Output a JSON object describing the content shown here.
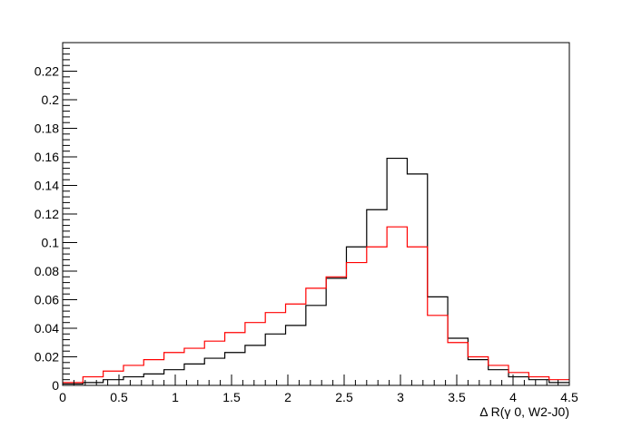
{
  "chart_data": {
    "type": "line",
    "style": "step-histogram",
    "xlabel": "Δ R(γ 0, W2-J0)",
    "ylabel": "",
    "title": "",
    "xlim": [
      0,
      4.5
    ],
    "ylim": [
      0,
      0.24
    ],
    "grid": false,
    "bin_edges": [
      0,
      0.18,
      0.36,
      0.54,
      0.72,
      0.9,
      1.08,
      1.26,
      1.44,
      1.62,
      1.8,
      1.98,
      2.16,
      2.34,
      2.52,
      2.7,
      2.88,
      3.06,
      3.24,
      3.42,
      3.6,
      3.78,
      3.96,
      4.14,
      4.32,
      4.5
    ],
    "x_ticks": [
      0,
      0.5,
      1,
      1.5,
      2,
      2.5,
      3,
      3.5,
      4,
      4.5
    ],
    "x_tick_labels": [
      "0",
      "0.5",
      "1",
      "1.5",
      "2",
      "2.5",
      "3",
      "3.5",
      "4",
      "4.5"
    ],
    "y_ticks": [
      0,
      0.02,
      0.04,
      0.06,
      0.08,
      0.1,
      0.12,
      0.14,
      0.16,
      0.18,
      0.2,
      0.22
    ],
    "y_tick_labels": [
      "0",
      "0.02",
      "0.04",
      "0.06",
      "0.08",
      "0.1",
      "0.12",
      "0.14",
      "0.16",
      "0.18",
      "0.2",
      "0.22"
    ],
    "series": [
      {
        "color": "#000000",
        "values": [
          0.001,
          0.002,
          0.004,
          0.006,
          0.008,
          0.011,
          0.015,
          0.019,
          0.023,
          0.028,
          0.036,
          0.042,
          0.056,
          0.075,
          0.097,
          0.123,
          0.159,
          0.148,
          0.062,
          0.033,
          0.018,
          0.011,
          0.006,
          0.004,
          0.002
        ]
      },
      {
        "color": "#ff0000",
        "values": [
          0.002,
          0.006,
          0.01,
          0.014,
          0.018,
          0.023,
          0.026,
          0.031,
          0.037,
          0.044,
          0.051,
          0.057,
          0.068,
          0.076,
          0.086,
          0.097,
          0.111,
          0.097,
          0.049,
          0.03,
          0.02,
          0.014,
          0.009,
          0.006,
          0.004
        ]
      }
    ]
  }
}
